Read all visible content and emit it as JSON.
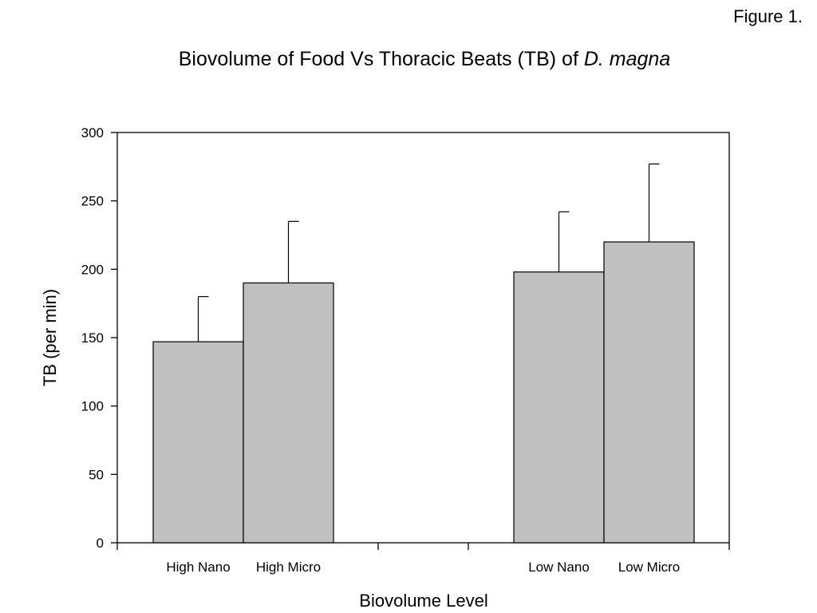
{
  "figure_label": "Figure 1.",
  "chart_data": {
    "type": "bar",
    "title": "Biovolume of Food Vs Thoracic Beats (TB) of",
    "title_italic": "D. magna",
    "xlabel": "Biovolume Level",
    "ylabel": "TB (per min)",
    "ylim": [
      0,
      300
    ],
    "yticks": [
      0,
      50,
      100,
      150,
      200,
      250,
      300
    ],
    "grid": false,
    "legend": "none",
    "bar_color": "#c0c0c0",
    "categories": [
      "High Nano",
      "High Micro",
      "Low Nano",
      "Low Micro"
    ],
    "values": [
      147,
      190,
      198,
      220
    ],
    "error_upper": [
      180,
      235,
      242,
      277
    ]
  }
}
